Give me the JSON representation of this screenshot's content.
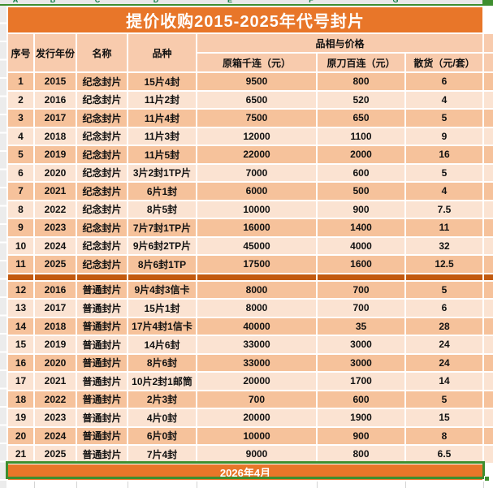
{
  "chrome": {
    "column_letters": [
      "A",
      "B",
      "C",
      "D",
      "E",
      "F",
      "G"
    ],
    "colors": {
      "title_orange": "#e87629",
      "header_peach": "#f8cbad",
      "row_dark": "#f6c29b",
      "row_light": "#fbe3d2",
      "divider_orange": "#c25a10",
      "selection_green": "#3e8e2f"
    }
  },
  "title": "提价收购2015-2025年代号封片",
  "header": {
    "seq": "序号",
    "year": "发行年份",
    "name": "名称",
    "variety": "品种",
    "group": "品相与价格",
    "price1": "原箱千连（元）",
    "price2": "原刀百连（元）",
    "price3": "散货（元/套）"
  },
  "sections": [
    {
      "rows": [
        [
          "1",
          "2015",
          "纪念封片",
          "15片4封",
          "9500",
          "800",
          "6"
        ],
        [
          "2",
          "2016",
          "纪念封片",
          "11片2封",
          "6500",
          "520",
          "4"
        ],
        [
          "3",
          "2017",
          "纪念封片",
          "11片4封",
          "7500",
          "650",
          "5"
        ],
        [
          "4",
          "2018",
          "纪念封片",
          "11片3封",
          "12000",
          "1100",
          "9"
        ],
        [
          "5",
          "2019",
          "纪念封片",
          "11片5封",
          "22000",
          "2000",
          "16"
        ],
        [
          "6",
          "2020",
          "纪念封片",
          "3片2封1TP片",
          "7000",
          "600",
          "5"
        ],
        [
          "7",
          "2021",
          "纪念封片",
          "6片1封",
          "6000",
          "500",
          "4"
        ],
        [
          "8",
          "2022",
          "纪念封片",
          "8片5封",
          "10000",
          "900",
          "7.5"
        ],
        [
          "9",
          "2023",
          "纪念封片",
          "7片7封1TP片",
          "16000",
          "1400",
          "11"
        ],
        [
          "10",
          "2024",
          "纪念封片",
          "9片6封2TP片",
          "45000",
          "4000",
          "32"
        ],
        [
          "11",
          "2025",
          "纪念封片",
          "8片6封1TP",
          "17500",
          "1600",
          "12.5"
        ]
      ]
    },
    {
      "rows": [
        [
          "12",
          "2016",
          "普通封片",
          "9片4封3信卡",
          "8000",
          "700",
          "5"
        ],
        [
          "13",
          "2017",
          "普通封片",
          "15片1封",
          "8000",
          "700",
          "6"
        ],
        [
          "14",
          "2018",
          "普通封片",
          "17片4封1信卡",
          "40000",
          "35",
          "28"
        ],
        [
          "15",
          "2019",
          "普通封片",
          "14片6封",
          "33000",
          "3000",
          "24"
        ],
        [
          "16",
          "2020",
          "普通封片",
          "8片6封",
          "33000",
          "3000",
          "24"
        ],
        [
          "17",
          "2021",
          "普通封片",
          "10片2封1邮筒",
          "20000",
          "1700",
          "14"
        ],
        [
          "18",
          "2022",
          "普通封片",
          "2片3封",
          "700",
          "600",
          "5"
        ],
        [
          "19",
          "2023",
          "普通封片",
          "4片0封",
          "20000",
          "1900",
          "15"
        ],
        [
          "20",
          "2024",
          "普通封片",
          "6片0封",
          "10000",
          "900",
          "8"
        ],
        [
          "21",
          "2025",
          "普通封片",
          "7片4封",
          "9000",
          "800",
          "6.5"
        ]
      ]
    }
  ],
  "footer": "2026年4月"
}
